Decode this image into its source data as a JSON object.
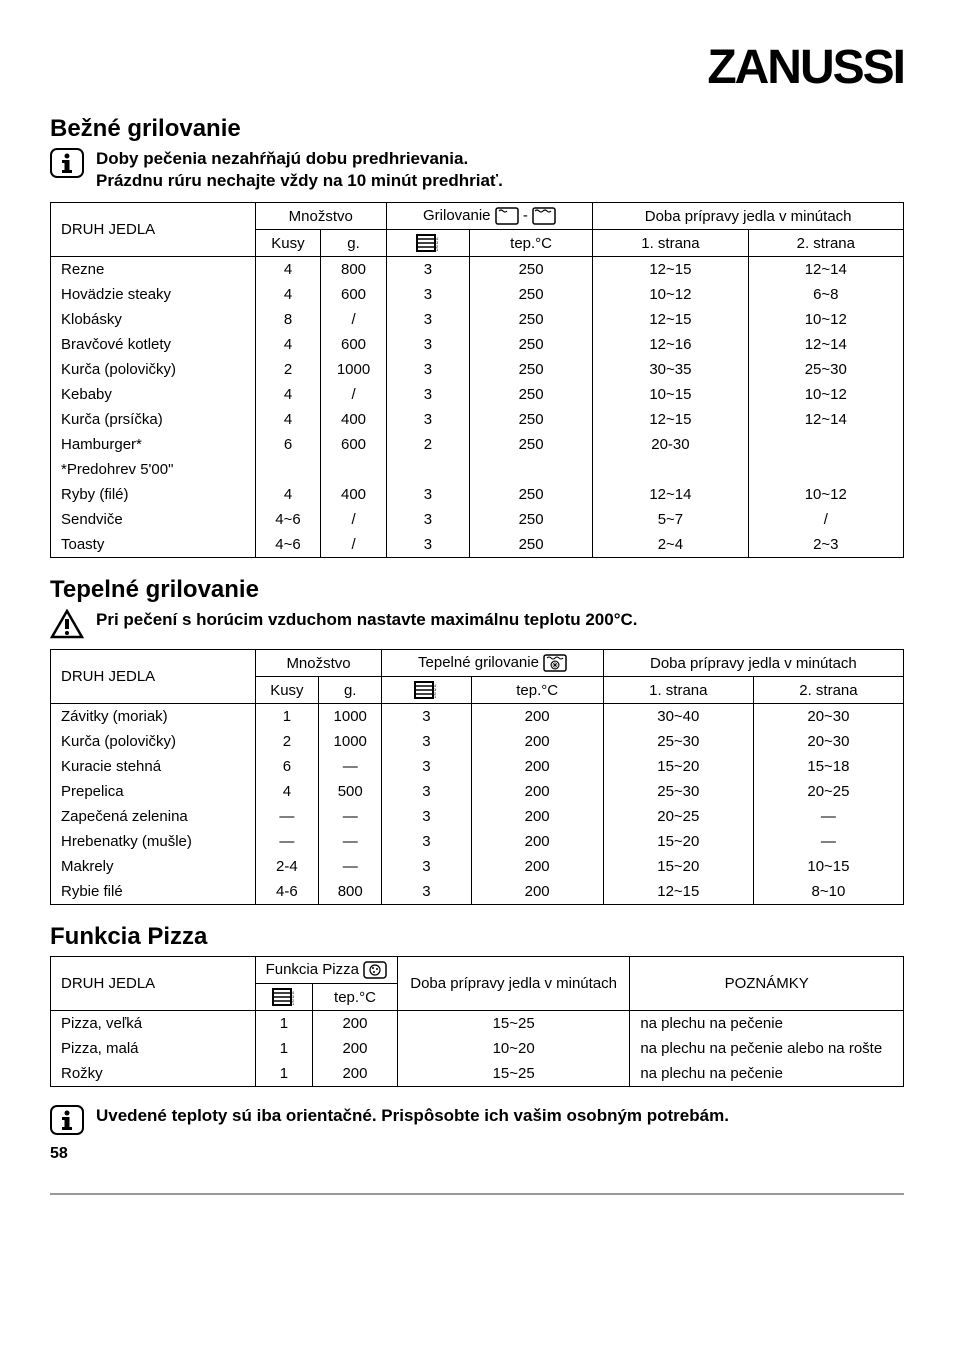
{
  "brand": "ZANUSSI",
  "section1": {
    "title": "Bežné grilovanie",
    "info_line1": "Doby pečenia nezahŕňajú dobu predhrievania.",
    "info_line2": "Prázdnu rúru nechajte vždy na 10 minút predhriať.",
    "col_food": "DRUH JEDLA",
    "col_qty": "Množstvo",
    "col_grill": "Grilovanie",
    "col_time": "Doba prípravy jedla v minútach",
    "sub_kusy": "Kusy",
    "sub_g": "g.",
    "sub_temp": "tep.°C",
    "sub_side1": "1. strana",
    "sub_side2": "2. strana",
    "rows": [
      {
        "name": "Rezne",
        "kusy": "4",
        "g": "800",
        "level": "3",
        "temp": "250",
        "s1": "12~15",
        "s2": "12~14"
      },
      {
        "name": "Hovädzie steaky",
        "kusy": "4",
        "g": "600",
        "level": "3",
        "temp": "250",
        "s1": "10~12",
        "s2": "6~8"
      },
      {
        "name": "Klobásky",
        "kusy": "8",
        "g": "/",
        "level": "3",
        "temp": "250",
        "s1": "12~15",
        "s2": "10~12"
      },
      {
        "name": "Bravčové kotlety",
        "kusy": "4",
        "g": "600",
        "level": "3",
        "temp": "250",
        "s1": "12~16",
        "s2": "12~14"
      },
      {
        "name": "Kurča (polovičky)",
        "kusy": "2",
        "g": "1000",
        "level": "3",
        "temp": "250",
        "s1": "30~35",
        "s2": "25~30"
      },
      {
        "name": "Kebaby",
        "kusy": "4",
        "g": "/",
        "level": "3",
        "temp": "250",
        "s1": "10~15",
        "s2": "10~12"
      },
      {
        "name": "Kurča (prsíčka)",
        "kusy": "4",
        "g": "400",
        "level": "3",
        "temp": "250",
        "s1": "12~15",
        "s2": "12~14"
      },
      {
        "name": "Hamburger*",
        "kusy": "6",
        "g": "600",
        "level": "2",
        "temp": "250",
        "s1": "20-30",
        "s2": ""
      },
      {
        "name": "*Predohrev 5'00\"",
        "kusy": "",
        "g": "",
        "level": "",
        "temp": "",
        "s1": "",
        "s2": ""
      },
      {
        "name": "Ryby (filé)",
        "kusy": "4",
        "g": "400",
        "level": "3",
        "temp": "250",
        "s1": "12~14",
        "s2": "10~12"
      },
      {
        "name": "Sendviče",
        "kusy": "4~6",
        "g": "/",
        "level": "3",
        "temp": "250",
        "s1": "5~7",
        "s2": "/"
      },
      {
        "name": "Toasty",
        "kusy": "4~6",
        "g": "/",
        "level": "3",
        "temp": "250",
        "s1": "2~4",
        "s2": "2~3"
      }
    ]
  },
  "section2": {
    "title": "Tepelné grilovanie",
    "warn": "Pri pečení s horúcim vzduchom nastavte maximálnu teplotu 200°C.",
    "col_food": "DRUH JEDLA",
    "col_qty": "Množstvo",
    "col_grill": "Tepelné grilovanie",
    "col_time": "Doba prípravy jedla v minútach",
    "sub_kusy": "Kusy",
    "sub_g": "g.",
    "sub_temp": "tep.°C",
    "sub_side1": "1. strana",
    "sub_side2": "2. strana",
    "rows": [
      {
        "name": "Závitky (moriak)",
        "kusy": "1",
        "g": "1000",
        "level": "3",
        "temp": "200",
        "s1": "30~40",
        "s2": "20~30"
      },
      {
        "name": "Kurča (polovičky)",
        "kusy": "2",
        "g": "1000",
        "level": "3",
        "temp": "200",
        "s1": "25~30",
        "s2": "20~30"
      },
      {
        "name": "Kuracie stehná",
        "kusy": "6",
        "g": "—",
        "level": "3",
        "temp": "200",
        "s1": "15~20",
        "s2": "15~18"
      },
      {
        "name": "Prepelica",
        "kusy": "4",
        "g": "500",
        "level": "3",
        "temp": "200",
        "s1": "25~30",
        "s2": "20~25"
      },
      {
        "name": "Zapečená zelenina",
        "kusy": "—",
        "g": "—",
        "level": "3",
        "temp": "200",
        "s1": "20~25",
        "s2": "—"
      },
      {
        "name": "Hrebenatky (mušle)",
        "kusy": "—",
        "g": "—",
        "level": "3",
        "temp": "200",
        "s1": "15~20",
        "s2": "—"
      },
      {
        "name": "Makrely",
        "kusy": "2-4",
        "g": "—",
        "level": "3",
        "temp": "200",
        "s1": "15~20",
        "s2": "10~15"
      },
      {
        "name": "Rybie filé",
        "kusy": "4-6",
        "g": "800",
        "level": "3",
        "temp": "200",
        "s1": "12~15",
        "s2": "8~10"
      }
    ]
  },
  "section3": {
    "title": "Funkcia Pizza",
    "col_food": "DRUH JEDLA",
    "col_pizza": "Funkcia Pizza",
    "col_time": "Doba prípravy jedla v minútach",
    "col_notes": "POZNÁMKY",
    "sub_temp": "tep.°C",
    "rows": [
      {
        "name": "Pizza, veľká",
        "level": "1",
        "temp": "200",
        "time": "15~25",
        "note": "na plechu na pečenie"
      },
      {
        "name": "Pizza, malá",
        "level": "1",
        "temp": "200",
        "time": "10~20",
        "note": "na plechu na pečenie alebo na rošte"
      },
      {
        "name": "Rožky",
        "level": "1",
        "temp": "200",
        "time": "15~25",
        "note": "na plechu na pečenie"
      }
    ]
  },
  "footer_note": "Uvedené teploty sú iba orientačné. Prispôsobte ich vašim osobným potrebám.",
  "page_number": "58"
}
